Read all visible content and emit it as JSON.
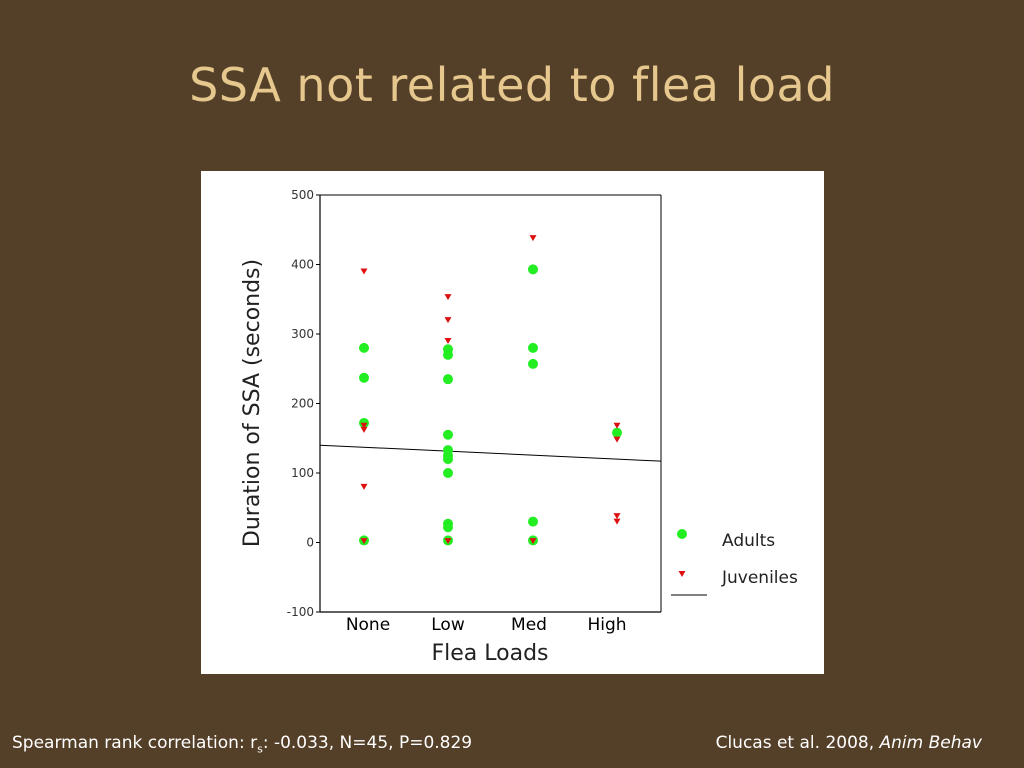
{
  "slide": {
    "title": "SSA not related to flea load"
  },
  "footer": {
    "stat_prefix": "Spearman rank correlation: r",
    "stat_sub": "s",
    "stat_suffix": ": -0.033, N=45, P=0.829",
    "citation": "Clucas et al. 2008, ",
    "journal": "Anim Behav"
  },
  "colors": {
    "background": "#543f28",
    "title": "#e6c88e",
    "adults": "#22ee22",
    "juveniles": "#dd1111"
  },
  "chart_data": {
    "type": "scatter",
    "xlabel": "Flea Loads",
    "ylabel": "Duration of SSA (seconds)",
    "categories": [
      "None",
      "Low",
      "Med",
      "High"
    ],
    "ylim": [
      -100,
      500
    ],
    "yticks": [
      -100,
      0,
      100,
      200,
      300,
      400,
      500
    ],
    "grid": false,
    "legend_position": "right",
    "series": [
      {
        "name": "Adults",
        "marker": "circle",
        "points": [
          {
            "x": "None",
            "y": 280
          },
          {
            "x": "None",
            "y": 237
          },
          {
            "x": "None",
            "y": 172
          },
          {
            "x": "None",
            "y": 3
          },
          {
            "x": "Low",
            "y": 278
          },
          {
            "x": "Low",
            "y": 270
          },
          {
            "x": "Low",
            "y": 235
          },
          {
            "x": "Low",
            "y": 155
          },
          {
            "x": "Low",
            "y": 133
          },
          {
            "x": "Low",
            "y": 125
          },
          {
            "x": "Low",
            "y": 120
          },
          {
            "x": "Low",
            "y": 100
          },
          {
            "x": "Low",
            "y": 27
          },
          {
            "x": "Low",
            "y": 22
          },
          {
            "x": "Low",
            "y": 3
          },
          {
            "x": "Med",
            "y": 393
          },
          {
            "x": "Med",
            "y": 280
          },
          {
            "x": "Med",
            "y": 257
          },
          {
            "x": "Med",
            "y": 30
          },
          {
            "x": "Med",
            "y": 3
          },
          {
            "x": "High",
            "y": 158
          }
        ]
      },
      {
        "name": "Juveniles",
        "marker": "triangle-down",
        "points": [
          {
            "x": "None",
            "y": 390
          },
          {
            "x": "None",
            "y": 168
          },
          {
            "x": "None",
            "y": 162
          },
          {
            "x": "None",
            "y": 80
          },
          {
            "x": "None",
            "y": 2
          },
          {
            "x": "Low",
            "y": 353
          },
          {
            "x": "Low",
            "y": 320
          },
          {
            "x": "Low",
            "y": 290
          },
          {
            "x": "Low",
            "y": 2
          },
          {
            "x": "Med",
            "y": 438
          },
          {
            "x": "Med",
            "y": 2
          },
          {
            "x": "High",
            "y": 168
          },
          {
            "x": "High",
            "y": 148
          },
          {
            "x": "High",
            "y": 38
          },
          {
            "x": "High",
            "y": 30
          }
        ]
      }
    ],
    "trend_line": {
      "y_start": 140,
      "y_end": 117
    },
    "legend": [
      {
        "label": "Adults",
        "marker": "circle"
      },
      {
        "label": "Juveniles",
        "marker": "triangle-down"
      },
      {
        "label": "",
        "marker": "line"
      }
    ]
  }
}
